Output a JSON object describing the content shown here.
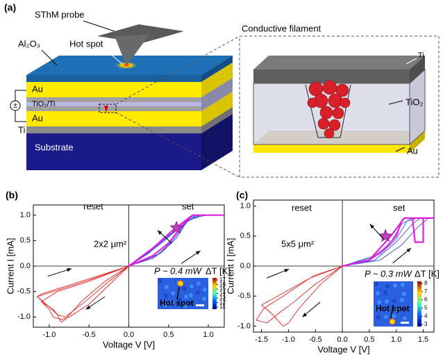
{
  "panel_a": {
    "label": "(a)",
    "probe": "SThM probe",
    "hot_spot": "Hot spot",
    "al2o3": "Al₂O₃",
    "au_top": "Au",
    "tio2_ti": "TiO₂/Ti",
    "au_bottom": "Au",
    "ti": "Ti",
    "substrate": "Substrate",
    "zoom_title": "Conductive filament",
    "zoom_ti": "Ti",
    "zoom_tio2": "TiO₂",
    "zoom_au": "Au"
  },
  "chart_data": [
    {
      "type": "line",
      "panel_label": "(b)",
      "xlabel": "Voltage V [V]",
      "ylabel": "Current I [mA]",
      "xlim": [
        -1.2,
        1.2
      ],
      "ylim": [
        -1.2,
        1.2
      ],
      "xticks": [
        {
          "value": -1,
          "label": "-1.0"
        },
        -0.5,
        {
          "value": 0,
          "label": "0.0"
        },
        0.5,
        {
          "value": 1,
          "label": "1.0"
        }
      ],
      "yticks": [
        {
          "value": -1,
          "label": "-1.0"
        },
        -0.5,
        {
          "value": 0,
          "label": "0.0"
        },
        0.5,
        {
          "value": 1,
          "label": "1.0"
        }
      ],
      "annotations": [
        "reset",
        "set",
        "2x2 μm²"
      ],
      "series": [
        {
          "color": "#3a4fd8",
          "x": [
            0,
            0.3,
            0.5,
            0.65,
            0.75,
            0.9,
            0.7,
            0.45,
            0.2,
            0
          ],
          "values": [
            0,
            0.15,
            0.4,
            0.7,
            0.95,
            1.0,
            0.85,
            0.5,
            0.2,
            0
          ]
        },
        {
          "color": "#3a4fd8",
          "x": [
            0,
            0.35,
            0.55,
            0.7,
            0.8,
            0.95,
            0.75,
            0.5,
            0.25,
            0
          ],
          "values": [
            0,
            0.2,
            0.5,
            0.8,
            1.0,
            1.0,
            0.9,
            0.6,
            0.25,
            0
          ]
        },
        {
          "color": "#3a4fd8",
          "x": [
            0,
            0.4,
            0.6,
            0.72,
            0.85,
            1.0,
            0.8,
            0.55,
            0.28,
            0
          ],
          "values": [
            0,
            0.25,
            0.55,
            0.85,
            1.0,
            1.0,
            0.95,
            0.65,
            0.3,
            0
          ]
        },
        {
          "color": "#e020e0",
          "x": [
            0,
            0.3,
            0.5,
            0.6,
            0.7,
            0.8,
            1.2,
            0.8,
            0.55,
            0.3,
            0
          ],
          "values": [
            0,
            0.2,
            0.45,
            0.65,
            0.85,
            1.0,
            1.0,
            1.0,
            0.7,
            0.35,
            0
          ]
        },
        {
          "color": "#e02020",
          "x": [
            0,
            -0.4,
            -0.8,
            -1.1,
            -1.15,
            -1.0,
            -0.9,
            -0.85,
            -0.8,
            -0.6,
            -0.3,
            0
          ],
          "values": [
            0,
            -0.2,
            -0.4,
            -0.55,
            -0.6,
            -0.8,
            -0.95,
            -1.1,
            -1.05,
            -0.7,
            -0.3,
            0
          ]
        },
        {
          "color": "#e02020",
          "x": [
            0,
            -0.45,
            -0.85,
            -1.15,
            -1.05,
            -0.95,
            -0.9,
            -0.8,
            -0.55,
            -0.25,
            0
          ],
          "values": [
            0,
            -0.25,
            -0.45,
            -0.6,
            -0.75,
            -0.85,
            -0.95,
            -1.0,
            -0.7,
            -0.3,
            0
          ]
        },
        {
          "color": "#e02020",
          "x": [
            0,
            -0.5,
            -0.9,
            -1.1,
            -1.0,
            -0.95,
            -0.85,
            -0.75,
            -0.5,
            -0.2,
            0
          ],
          "values": [
            0,
            -0.3,
            -0.5,
            -0.7,
            -0.85,
            -1.0,
            -1.05,
            -1.0,
            -0.75,
            -0.3,
            0
          ]
        }
      ],
      "star": {
        "x": 0.6,
        "y": 0.75,
        "color": "#c040c0"
      },
      "inset": {
        "power": "P ~ 0.4 mW",
        "colorbar_label": "ΔT [K]",
        "hot_spot": "Hot spot",
        "colorbar_ticks": [
          11,
          12,
          13,
          14,
          15,
          16,
          17
        ]
      }
    },
    {
      "type": "line",
      "panel_label": "(c)",
      "xlabel": "Voltage V [V]",
      "ylabel": "Current I [mA]",
      "xlim": [
        -1.65,
        1.7
      ],
      "ylim": [
        -1.1,
        1.1
      ],
      "xticks": [
        -1.5,
        {
          "value": -1,
          "label": "-1.0"
        },
        -0.5,
        {
          "value": 0,
          "label": "0.0"
        },
        0.5,
        {
          "value": 1,
          "label": "1.0"
        },
        1.5
      ],
      "yticks": [
        {
          "value": -1,
          "label": "-1.0"
        },
        -0.5,
        {
          "value": 0,
          "label": "0.0"
        },
        0.5,
        {
          "value": 1,
          "label": "1.0"
        }
      ],
      "annotations": [
        "reset",
        "set",
        "5x5 μm²"
      ],
      "series": [
        {
          "color": "#3a4fd8",
          "x": [
            0,
            0.6,
            0.9,
            1.1,
            1.3,
            1.45,
            1.3,
            1.0,
            0.6,
            0
          ],
          "values": [
            0,
            0.15,
            0.4,
            0.7,
            0.8,
            0.8,
            0.7,
            0.4,
            0.1,
            0
          ]
        },
        {
          "color": "#3a4fd8",
          "x": [
            0,
            0.7,
            1.0,
            1.2,
            1.4,
            1.6,
            1.4,
            1.1,
            0.7,
            0
          ],
          "values": [
            0,
            0.2,
            0.45,
            0.75,
            0.8,
            0.8,
            0.65,
            0.35,
            0.1,
            0
          ]
        },
        {
          "color": "#e020e0",
          "x": [
            0,
            0.5,
            0.8,
            1.0,
            1.1,
            1.15,
            1.3,
            1.35,
            1.5,
            1.5,
            1.7,
            1.5,
            1.15,
            0.9,
            0.5,
            0
          ],
          "values": [
            0,
            0.1,
            0.3,
            0.5,
            0.75,
            0.8,
            0.8,
            0.4,
            0.4,
            0.8,
            0.8,
            0.8,
            0.8,
            0.5,
            0.1,
            0
          ]
        },
        {
          "color": "#e02020",
          "x": [
            0,
            -0.5,
            -1.0,
            -1.3,
            -1.5,
            -1.3,
            -1.1,
            -1.0,
            -0.8,
            -0.4,
            0
          ],
          "values": [
            0,
            -0.15,
            -0.4,
            -0.55,
            -0.65,
            -0.8,
            -1.0,
            -0.95,
            -0.7,
            -0.3,
            0
          ]
        },
        {
          "color": "#e02020",
          "x": [
            0,
            -0.6,
            -1.1,
            -1.45,
            -1.6,
            -1.4,
            -1.2,
            -0.9,
            -0.5,
            0
          ],
          "values": [
            0,
            -0.2,
            -0.5,
            -0.7,
            -0.9,
            -0.95,
            -0.8,
            -0.6,
            -0.3,
            0
          ]
        }
      ],
      "star": {
        "x": 0.8,
        "y": 0.5,
        "color": "#c040c0"
      },
      "inset": {
        "power": "P ~ 0.3 mW",
        "colorbar_label": "ΔT [K]",
        "hot_spot": "Hot spot",
        "colorbar_ticks": [
          3,
          4,
          5,
          6,
          7,
          8
        ]
      }
    }
  ]
}
